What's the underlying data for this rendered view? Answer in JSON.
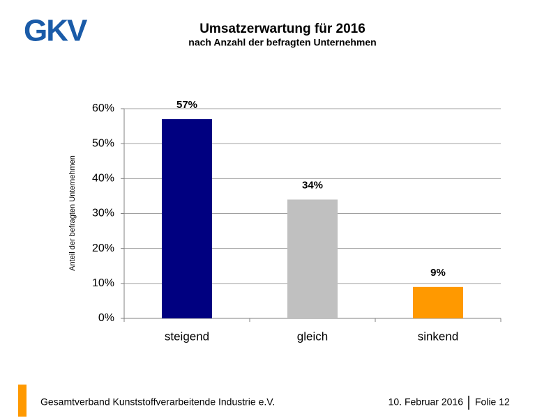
{
  "logo": "GKV",
  "footer": {
    "organization": "Gesamtverband Kunststoffverarbeitende Industrie e.V.",
    "date": "10. Februar 2016",
    "slide": "Folie 12"
  },
  "chart_data": {
    "type": "bar",
    "title": "Umsatzerwartung für 2016",
    "subtitle": "nach Anzahl der befragten Unternehmen",
    "y_label": "Anteil der befragten Unternehmen",
    "categories": [
      "steigend",
      "gleich",
      "sinkend"
    ],
    "values": [
      57,
      34,
      9
    ],
    "value_labels": [
      "57%",
      "34%",
      "9%"
    ],
    "colors": [
      "#000080",
      "#c0c0c0",
      "#ff9900"
    ],
    "ylim": [
      0,
      60
    ],
    "yticks": [
      {
        "value": 0,
        "label": "0%"
      },
      {
        "value": 10,
        "label": "10%"
      },
      {
        "value": 20,
        "label": "20%"
      },
      {
        "value": 30,
        "label": "30%"
      },
      {
        "value": 40,
        "label": "40%"
      },
      {
        "value": 50,
        "label": "50%"
      },
      {
        "value": 60,
        "label": "60%"
      }
    ],
    "grid": true
  }
}
